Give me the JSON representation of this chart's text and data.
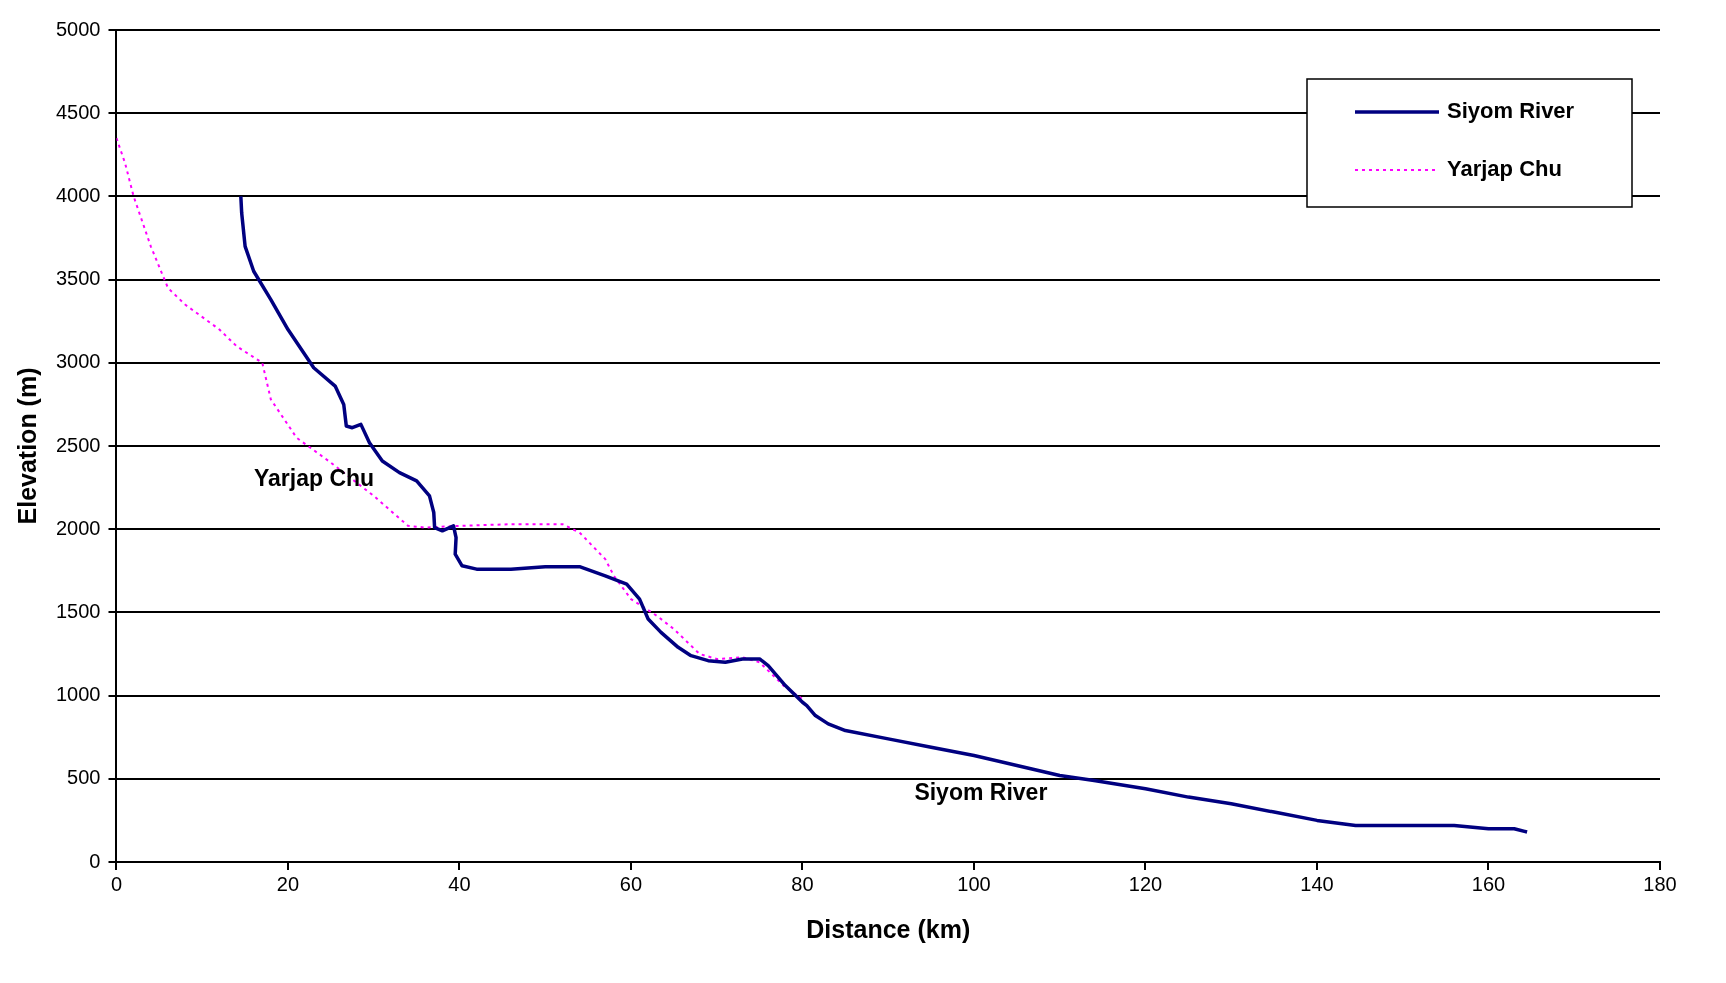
{
  "chart_data": {
    "type": "line",
    "xlabel": "Distance (km)",
    "ylabel": "Elevation (m)",
    "xlim": [
      0,
      180
    ],
    "xticks": [
      0,
      20,
      40,
      60,
      80,
      100,
      120,
      140,
      160,
      180
    ],
    "ylim": [
      0,
      5000
    ],
    "yticks": [
      0,
      500,
      1000,
      1500,
      2000,
      2500,
      3000,
      3500,
      4000,
      4500,
      5000
    ],
    "grid": "y",
    "legend": "top right",
    "marker": "none",
    "annotations": [
      "Yarjap Chu",
      "Siyom River"
    ],
    "series": [
      {
        "name": "Siyom River",
        "color": "#000080",
        "line_style": "solid",
        "x": [
          14.5,
          14.6,
          15,
          16,
          18,
          20,
          23,
          25.5,
          26.5,
          26.8,
          27.5,
          28.5,
          29.5,
          31,
          33,
          35,
          36.5,
          37,
          37.1,
          38,
          39.3,
          39.6,
          39.5,
          40.3,
          42,
          46,
          50,
          54,
          57,
          59.5,
          61,
          62,
          63.5,
          65.5,
          67,
          69,
          71,
          73,
          75,
          76,
          78,
          80,
          80.5,
          81.5,
          83,
          85,
          90,
          95,
          100,
          105,
          110,
          114,
          120,
          125,
          130,
          135,
          140,
          144.5,
          150,
          156,
          160,
          163,
          164.5
        ],
        "values": [
          4000,
          3900,
          3700,
          3550,
          3380,
          3200,
          2970,
          2860,
          2750,
          2620,
          2610,
          2630,
          2520,
          2410,
          2340,
          2290,
          2200,
          2100,
          2010,
          1990,
          2020,
          1950,
          1850,
          1780,
          1760,
          1760,
          1775,
          1775,
          1720,
          1670,
          1580,
          1460,
          1380,
          1290,
          1240,
          1210,
          1200,
          1220,
          1220,
          1180,
          1060,
          960,
          940,
          880,
          830,
          790,
          740,
          690,
          640,
          580,
          520,
          490,
          440,
          390,
          350,
          300,
          250,
          220,
          220,
          220,
          200,
          200,
          180
        ]
      },
      {
        "name": "Yarjap Chu",
        "color": "#ff00ff",
        "line_style": "dotted",
        "x": [
          0,
          1,
          2,
          4,
          6,
          8,
          12,
          14,
          17,
          18,
          21,
          25,
          30,
          34,
          36,
          40,
          46,
          52,
          54,
          57,
          58,
          60,
          63,
          65,
          68,
          70,
          73,
          75,
          78,
          80
        ],
        "values": [
          4350,
          4200,
          4000,
          3700,
          3450,
          3350,
          3200,
          3100,
          3000,
          2780,
          2550,
          2400,
          2200,
          2020,
          2010,
          2020,
          2030,
          2030,
          1980,
          1820,
          1720,
          1580,
          1480,
          1400,
          1250,
          1220,
          1230,
          1200,
          1050,
          980
        ]
      }
    ]
  }
}
